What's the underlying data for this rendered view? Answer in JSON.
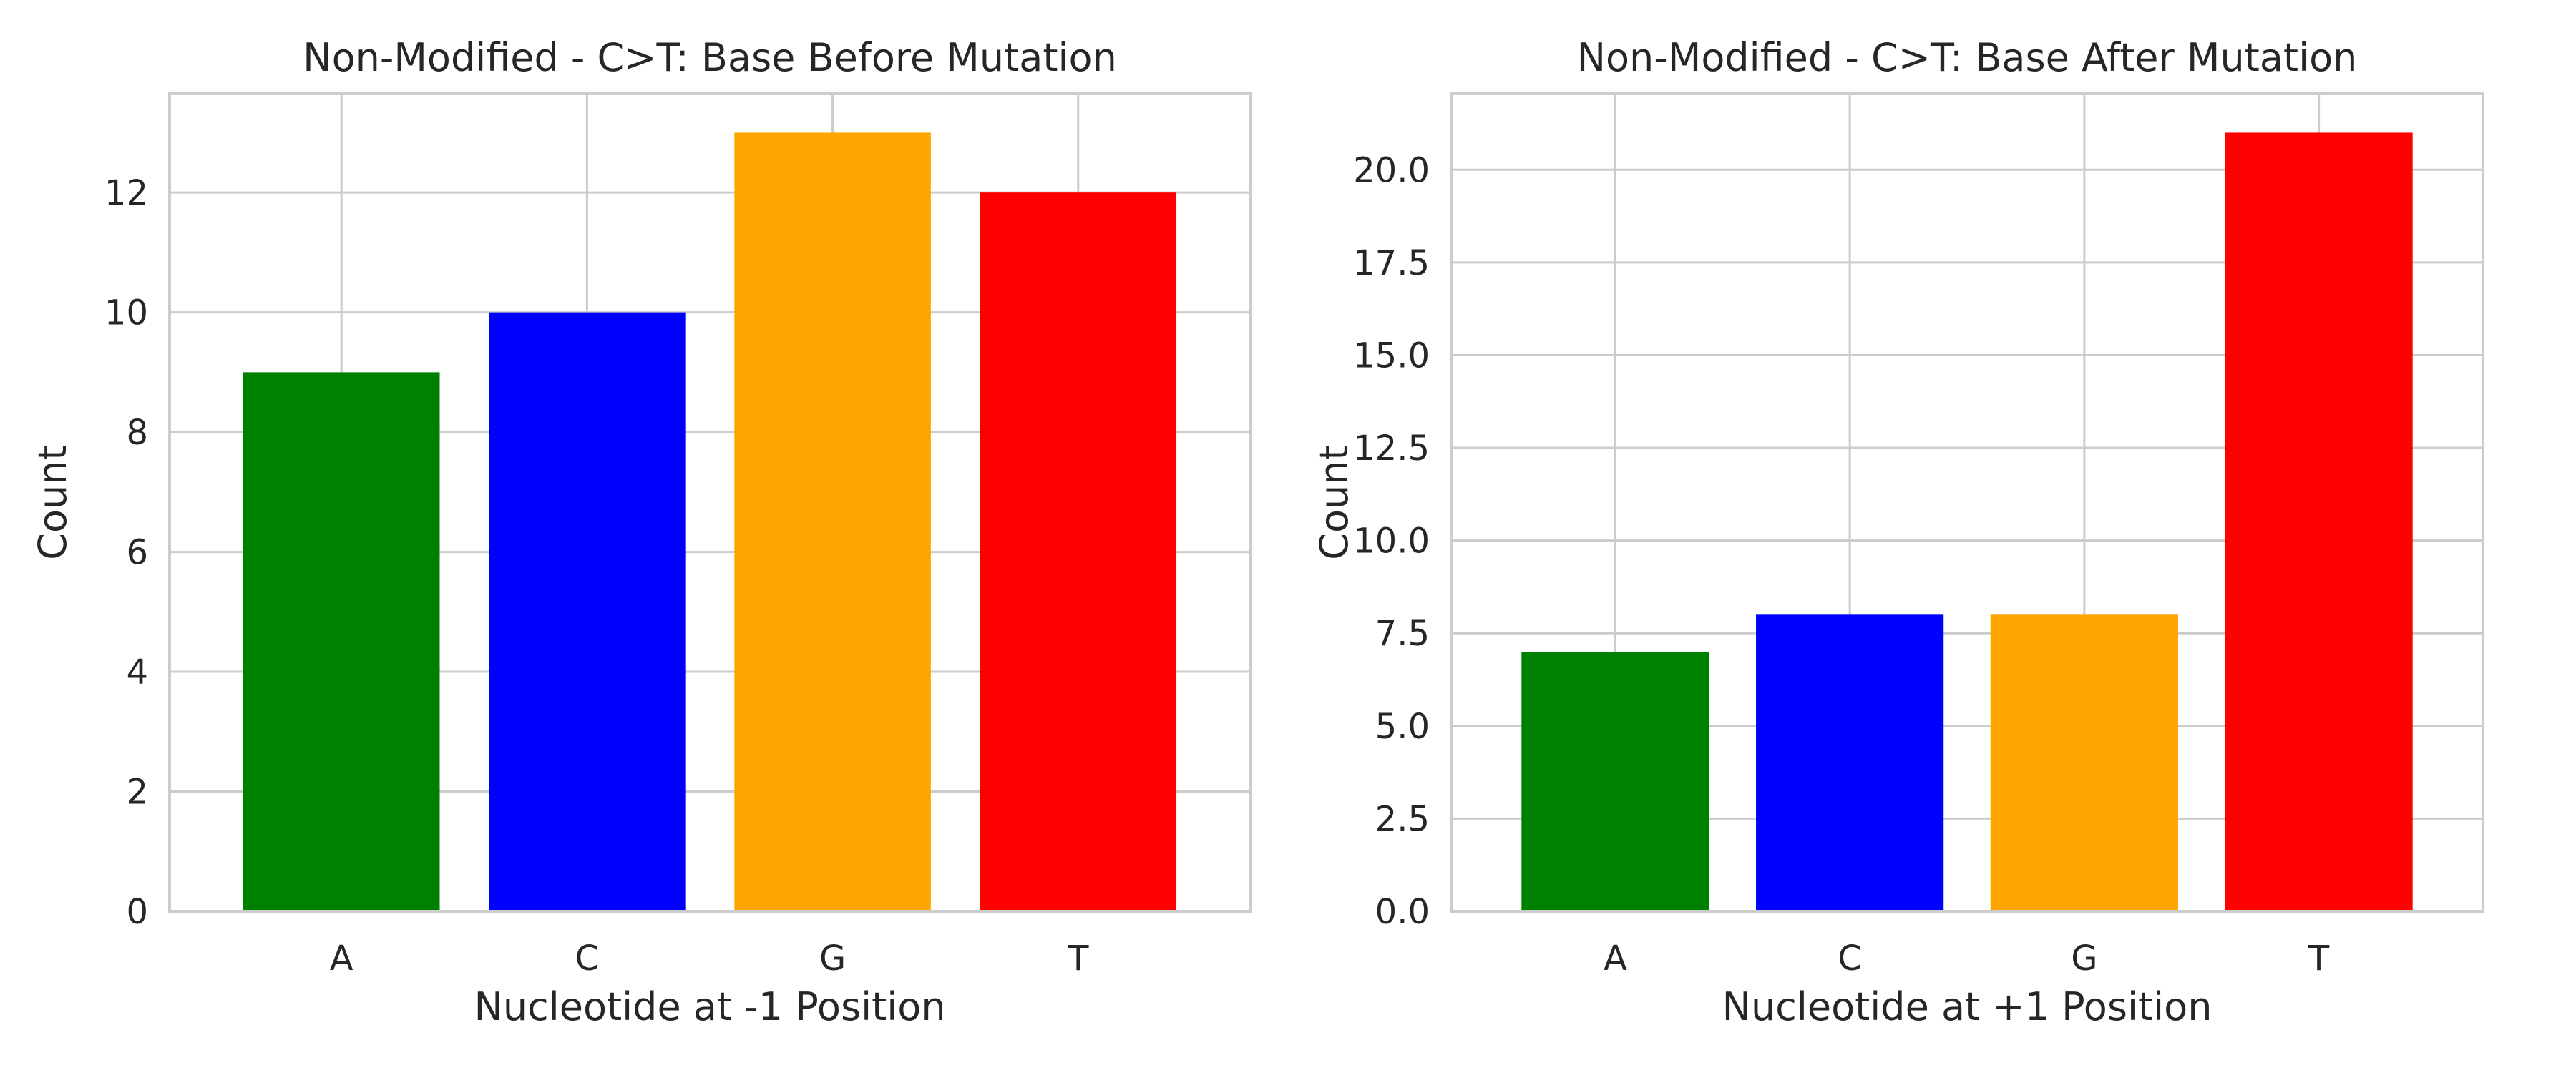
{
  "colors": {
    "A": "#008000",
    "C": "#0000ff",
    "G": "#ffa500",
    "T": "#ff0000"
  },
  "chart_data": [
    {
      "type": "bar",
      "title": "Non-Modified - C>T: Base Before Mutation",
      "xlabel": "Nucleotide at -1 Position",
      "ylabel": "Count",
      "categories": [
        "A",
        "C",
        "G",
        "T"
      ],
      "values": [
        9,
        10,
        13,
        12
      ],
      "ylim": [
        0,
        13.65
      ],
      "yticks": [
        0,
        2,
        4,
        6,
        8,
        10,
        12
      ],
      "ytick_labels": [
        "0",
        "2",
        "4",
        "6",
        "8",
        "10",
        "12"
      ],
      "grid": true
    },
    {
      "type": "bar",
      "title": "Non-Modified - C>T: Base After Mutation",
      "xlabel": "Nucleotide at +1 Position",
      "ylabel": "Count",
      "categories": [
        "A",
        "C",
        "G",
        "T"
      ],
      "values": [
        7,
        8,
        8,
        21
      ],
      "ylim": [
        0,
        22.05
      ],
      "yticks": [
        0,
        2.5,
        5,
        7.5,
        10,
        12.5,
        15,
        17.5,
        20
      ],
      "ytick_labels": [
        "0.0",
        "2.5",
        "5.0",
        "7.5",
        "10.0",
        "12.5",
        "15.0",
        "17.5",
        "20.0"
      ],
      "grid": true
    }
  ]
}
